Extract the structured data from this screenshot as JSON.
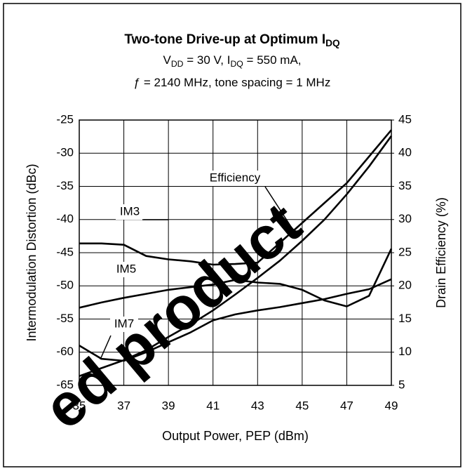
{
  "chart_data": {
    "type": "line",
    "title": [
      {
        "text": "Two-tone Drive-up at Optimum I"
      },
      {
        "text": "DQ",
        "sub": true
      }
    ],
    "subtitle": [
      [
        {
          "text": "V"
        },
        {
          "text": "DD",
          "sub": true
        },
        {
          "text": " = 30 V, I"
        },
        {
          "text": "DQ",
          "sub": true
        },
        {
          "text": " = 550 mA,"
        }
      ],
      [
        {
          "text": "ƒ = 2140 MHz, tone spacing = 1 MHz"
        }
      ]
    ],
    "x_label": "Output Power, PEP (dBm)",
    "y_label": "Intermodulation Distortion (dBc)",
    "y2_label": "Drain Efficiency (%)",
    "watermark": "ed product",
    "x": [
      35,
      36,
      37,
      38,
      39,
      40,
      41,
      42,
      43,
      44,
      45,
      46,
      47,
      48,
      49
    ],
    "series": [
      {
        "name": "IM3",
        "color": "#000000",
        "values": [
          -43.6,
          -43.6,
          -43.8,
          -45.5,
          -46,
          -46.3,
          -46.8,
          -46.7,
          -46.5,
          -43.5,
          -40.5,
          -37.5,
          -34.5,
          -30.5,
          -26.5
        ]
      },
      {
        "name": "IM5",
        "color": "#000000",
        "values": [
          -53.3,
          -52.5,
          -51.8,
          -51.2,
          -50.6,
          -50.2,
          -49.8,
          -49.1,
          -49.5,
          -49.7,
          -50.6,
          -52.2,
          -53.1,
          -51.5,
          -44.4
        ]
      },
      {
        "name": "IM7",
        "color": "#000000",
        "values": [
          -59,
          -61,
          -61.3,
          -60,
          -58.5,
          -57,
          -55.2,
          -54.3,
          -53.7,
          -53.2,
          -52.6,
          -52,
          -51.2,
          -50.5,
          -49
        ]
      },
      {
        "name": "Efficiency",
        "color": "#000000",
        "axis": "y2",
        "values": [
          6.4,
          7.6,
          8.8,
          10.3,
          12.3,
          14.2,
          16.3,
          18.7,
          21.2,
          23.8,
          26.8,
          30,
          33.8,
          38,
          42.6
        ]
      }
    ],
    "xlim": [
      35,
      49
    ],
    "xticks": [
      35,
      37,
      39,
      41,
      43,
      45,
      47,
      49
    ],
    "ylim": [
      -65,
      -25
    ],
    "yticks": [
      -65,
      -60,
      -55,
      -50,
      -45,
      -40,
      -35,
      -30,
      -25
    ],
    "y2lim": [
      5,
      45
    ],
    "y2ticks": [
      5,
      10,
      15,
      20,
      25,
      30,
      35,
      40,
      45
    ],
    "grid": true
  }
}
